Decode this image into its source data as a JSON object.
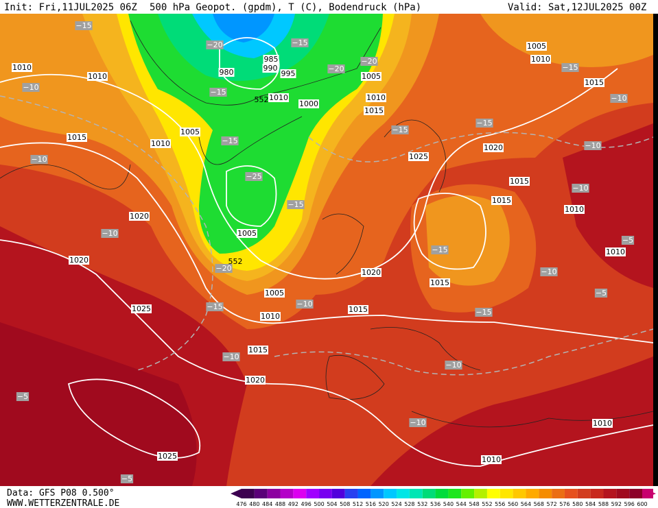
{
  "header": {
    "init": "Init: Fri,11JUL2025 06Z",
    "title": "500 hPa Geopot. (gpdm), T (C), Bodendruck (hPa)",
    "valid": "Valid: Sat,12JUL2025 00Z"
  },
  "footer": {
    "data": "Data: GFS P08 0.500°",
    "site": "WWW.WETTERZENTRALE.DE"
  },
  "pressure_labels": [
    "1010",
    "1010",
    "1015",
    "1010",
    "1005",
    "1020",
    "1020",
    "1025",
    "1020",
    "1025",
    "1015",
    "1010",
    "1005",
    "1005",
    "985",
    "990",
    "995",
    "980",
    "1010",
    "1000",
    "1005",
    "1010",
    "1015",
    "1025",
    "1020",
    "1015",
    "1015",
    "1010",
    "1010",
    "1005",
    "1010",
    "1015",
    "1020",
    "1015",
    "1015",
    "1010",
    "1010"
  ],
  "contour_labels": [
    "552",
    "552"
  ],
  "temperature_labels": [
    "−15",
    "−20",
    "−15",
    "−20",
    "−20",
    "−10",
    "−15",
    "−15",
    "−15",
    "−15",
    "−15",
    "−10",
    "−10",
    "−10",
    "−25",
    "−15",
    "−10",
    "−10",
    "−15",
    "−5",
    "−20",
    "−10",
    "−5",
    "−10",
    "−15",
    "−15",
    "−10",
    "−10",
    "−5",
    "−10",
    "−5"
  ],
  "colorbar": {
    "levels": [
      476,
      480,
      484,
      488,
      492,
      496,
      500,
      504,
      508,
      512,
      516,
      520,
      524,
      528,
      532,
      536,
      540,
      544,
      548,
      552,
      556,
      560,
      564,
      568,
      572,
      576,
      580,
      584,
      588,
      592,
      596,
      600
    ],
    "colors": [
      "#3c0050",
      "#5a0078",
      "#8c00a0",
      "#b400c8",
      "#dc00f0",
      "#a000ff",
      "#7800f0",
      "#5000dc",
      "#2840f0",
      "#0064ff",
      "#0096ff",
      "#00c8ff",
      "#00e6e6",
      "#00e6b4",
      "#00dc78",
      "#00dc3c",
      "#1ee61e",
      "#64f000",
      "#b4f000",
      "#ffff00",
      "#ffe600",
      "#ffc800",
      "#ffaa00",
      "#f58c00",
      "#eb6e14",
      "#e6501e",
      "#d23c1e",
      "#c8281e",
      "#b4141e",
      "#a00a1e",
      "#8c0028",
      "#c8006e"
    ]
  }
}
